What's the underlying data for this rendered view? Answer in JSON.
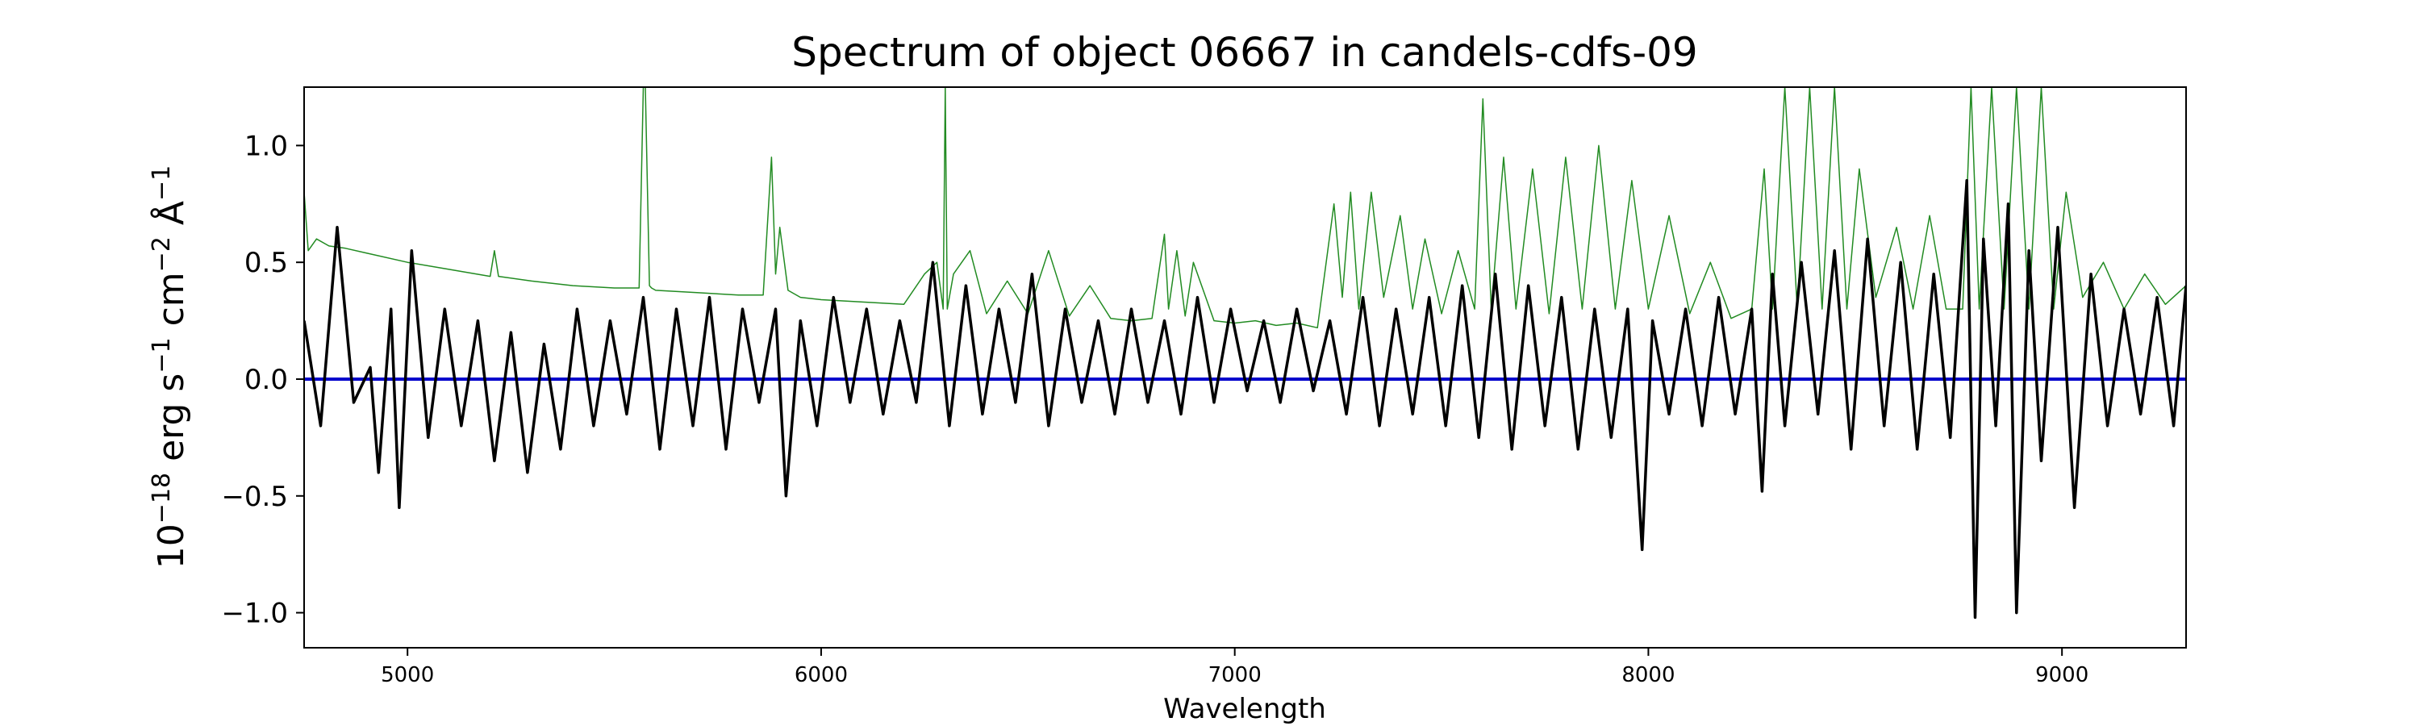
{
  "chart_data": {
    "type": "line",
    "title": "Spectrum of object 06667 in candels-cdfs-09",
    "xlabel": "Wavelength",
    "ylabel_parts": {
      "base": "10",
      "exp1": "−18",
      "unit_a": " erg s",
      "exp2": "−1",
      "unit_b": " cm",
      "exp3": "−2",
      "unit_c": " Å",
      "exp4": "−1"
    },
    "xlim": [
      4750,
      9300
    ],
    "ylim": [
      -1.15,
      1.25
    ],
    "x_ticks": [
      5000,
      6000,
      7000,
      8000,
      9000
    ],
    "x_tick_labels": [
      "5000",
      "6000",
      "7000",
      "8000",
      "9000"
    ],
    "y_ticks": [
      -1.0,
      -0.5,
      0.0,
      0.5,
      1.0
    ],
    "y_tick_labels": [
      "−1.0",
      "−0.5",
      "0.0",
      "0.5",
      "1.0"
    ],
    "colors": {
      "flux": "#000000",
      "error": "#228B22",
      "zero": "#0000cc"
    },
    "series": [
      {
        "id": "flux",
        "x": [
          4750,
          4790,
          4830,
          4870,
          4910,
          4930,
          4960,
          4980,
          5010,
          5050,
          5090,
          5130,
          5170,
          5210,
          5250,
          5290,
          5330,
          5370,
          5410,
          5450,
          5490,
          5530,
          5570,
          5610,
          5650,
          5690,
          5730,
          5770,
          5810,
          5850,
          5890,
          5915,
          5950,
          5990,
          6030,
          6070,
          6110,
          6150,
          6190,
          6230,
          6270,
          6310,
          6350,
          6390,
          6430,
          6470,
          6510,
          6550,
          6590,
          6630,
          6670,
          6710,
          6750,
          6790,
          6830,
          6870,
          6910,
          6950,
          6990,
          7030,
          7070,
          7110,
          7150,
          7190,
          7230,
          7270,
          7310,
          7350,
          7390,
          7430,
          7470,
          7510,
          7550,
          7590,
          7630,
          7670,
          7710,
          7750,
          7790,
          7830,
          7870,
          7910,
          7950,
          7985,
          8010,
          8050,
          8090,
          8130,
          8170,
          8210,
          8250,
          8275,
          8300,
          8330,
          8370,
          8410,
          8450,
          8490,
          8530,
          8570,
          8610,
          8650,
          8690,
          8730,
          8770,
          8790,
          8810,
          8840,
          8870,
          8890,
          8920,
          8950,
          8990,
          9030,
          9070,
          9110,
          9150,
          9190,
          9230,
          9270,
          9300
        ],
        "y": [
          0.25,
          -0.2,
          0.65,
          -0.1,
          0.05,
          -0.4,
          0.3,
          -0.55,
          0.55,
          -0.25,
          0.3,
          -0.2,
          0.25,
          -0.35,
          0.2,
          -0.4,
          0.15,
          -0.3,
          0.3,
          -0.2,
          0.25,
          -0.15,
          0.35,
          -0.3,
          0.3,
          -0.2,
          0.35,
          -0.3,
          0.3,
          -0.1,
          0.3,
          -0.5,
          0.25,
          -0.2,
          0.35,
          -0.1,
          0.3,
          -0.15,
          0.25,
          -0.1,
          0.5,
          -0.2,
          0.4,
          -0.15,
          0.3,
          -0.1,
          0.45,
          -0.2,
          0.3,
          -0.1,
          0.25,
          -0.15,
          0.3,
          -0.1,
          0.25,
          -0.15,
          0.35,
          -0.1,
          0.3,
          -0.05,
          0.25,
          -0.1,
          0.3,
          -0.05,
          0.25,
          -0.15,
          0.35,
          -0.2,
          0.3,
          -0.15,
          0.35,
          -0.2,
          0.4,
          -0.25,
          0.45,
          -0.3,
          0.4,
          -0.2,
          0.35,
          -0.3,
          0.3,
          -0.25,
          0.3,
          -0.73,
          0.25,
          -0.15,
          0.3,
          -0.2,
          0.35,
          -0.15,
          0.3,
          -0.48,
          0.45,
          -0.2,
          0.5,
          -0.15,
          0.55,
          -0.3,
          0.6,
          -0.2,
          0.5,
          -0.3,
          0.45,
          -0.25,
          0.85,
          -1.02,
          0.6,
          -0.2,
          0.75,
          -1.0,
          0.55,
          -0.35,
          0.65,
          -0.55,
          0.45,
          -0.2,
          0.3,
          -0.15,
          0.35,
          -0.2,
          0.4
        ]
      },
      {
        "id": "error",
        "x": [
          4750,
          4760,
          4780,
          4810,
          4850,
          4900,
          5000,
          5100,
          5200,
          5210,
          5220,
          5300,
          5400,
          5500,
          5560,
          5570,
          5575,
          5585,
          5590,
          5600,
          5700,
          5800,
          5860,
          5880,
          5890,
          5900,
          5920,
          5950,
          6000,
          6100,
          6200,
          6250,
          6280,
          6295,
          6300,
          6305,
          6320,
          6360,
          6400,
          6450,
          6500,
          6550,
          6600,
          6650,
          6700,
          6750,
          6800,
          6830,
          6840,
          6860,
          6880,
          6900,
          6950,
          7000,
          7050,
          7100,
          7150,
          7200,
          7240,
          7260,
          7280,
          7300,
          7330,
          7360,
          7400,
          7430,
          7460,
          7500,
          7540,
          7580,
          7600,
          7620,
          7650,
          7680,
          7720,
          7760,
          7800,
          7840,
          7880,
          7920,
          7960,
          8000,
          8050,
          8100,
          8150,
          8200,
          8250,
          8280,
          8300,
          8330,
          8360,
          8390,
          8420,
          8450,
          8480,
          8510,
          8550,
          8600,
          8640,
          8680,
          8720,
          8760,
          8780,
          8800,
          8830,
          8860,
          8890,
          8920,
          8950,
          8980,
          9010,
          9050,
          9100,
          9150,
          9200,
          9250,
          9300
        ],
        "y": [
          0.8,
          0.55,
          0.6,
          0.57,
          0.56,
          0.54,
          0.5,
          0.47,
          0.44,
          0.55,
          0.44,
          0.42,
          0.4,
          0.39,
          0.39,
          1.25,
          1.25,
          0.4,
          0.39,
          0.38,
          0.37,
          0.36,
          0.36,
          0.95,
          0.45,
          0.65,
          0.38,
          0.35,
          0.34,
          0.33,
          0.32,
          0.45,
          0.5,
          0.3,
          1.25,
          0.3,
          0.45,
          0.55,
          0.28,
          0.42,
          0.28,
          0.55,
          0.27,
          0.4,
          0.26,
          0.25,
          0.26,
          0.62,
          0.3,
          0.55,
          0.27,
          0.5,
          0.25,
          0.24,
          0.25,
          0.23,
          0.24,
          0.22,
          0.75,
          0.35,
          0.8,
          0.3,
          0.8,
          0.35,
          0.7,
          0.3,
          0.6,
          0.28,
          0.55,
          0.3,
          1.2,
          0.3,
          0.95,
          0.3,
          0.9,
          0.28,
          0.95,
          0.3,
          1.0,
          0.3,
          0.85,
          0.3,
          0.7,
          0.28,
          0.5,
          0.26,
          0.3,
          0.9,
          0.3,
          1.25,
          0.3,
          1.25,
          0.3,
          1.25,
          0.3,
          0.9,
          0.35,
          0.65,
          0.3,
          0.7,
          0.3,
          0.3,
          1.25,
          0.3,
          1.25,
          0.3,
          1.25,
          0.3,
          1.25,
          0.3,
          0.8,
          0.35,
          0.5,
          0.3,
          0.45,
          0.32,
          0.4
        ]
      },
      {
        "id": "zero",
        "x": [
          4750,
          9300
        ],
        "y": [
          0.0,
          0.0
        ]
      }
    ]
  }
}
